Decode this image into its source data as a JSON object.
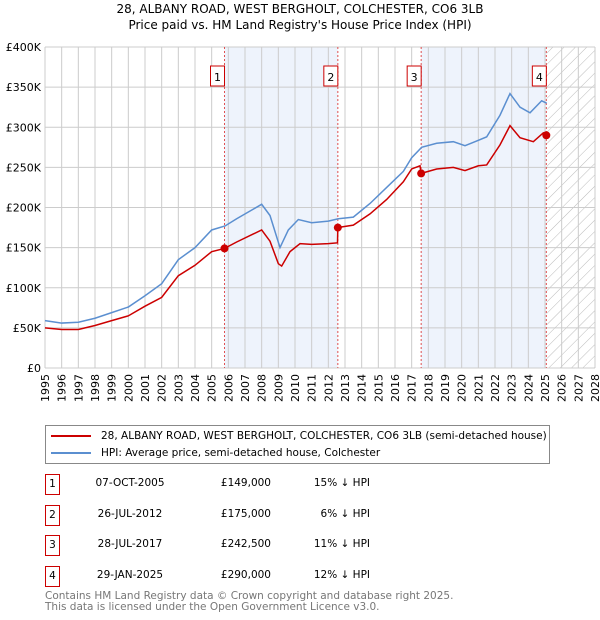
{
  "chart_data": {
    "type": "line",
    "title": "28, ALBANY ROAD, WEST BERGHOLT, COLCHESTER, CO6 3LB",
    "subtitle": "Price paid vs. HM Land Registry's House Price Index (HPI)",
    "xlim": [
      1995,
      2028
    ],
    "ylim": [
      0,
      400000
    ],
    "x_ticks": [
      "1995",
      "1996",
      "1997",
      "1998",
      "1999",
      "2000",
      "2001",
      "2002",
      "2003",
      "2004",
      "2005",
      "2006",
      "2007",
      "2008",
      "2009",
      "2010",
      "2011",
      "2012",
      "2013",
      "2014",
      "2015",
      "2016",
      "2017",
      "2018",
      "2019",
      "2020",
      "2021",
      "2022",
      "2023",
      "2024",
      "2025",
      "2026",
      "2027",
      "2028"
    ],
    "y_ticks": [
      {
        "v": 0,
        "label": "£0"
      },
      {
        "v": 50000,
        "label": "£50K"
      },
      {
        "v": 100000,
        "label": "£100K"
      },
      {
        "v": 150000,
        "label": "£150K"
      },
      {
        "v": 200000,
        "label": "£200K"
      },
      {
        "v": 250000,
        "label": "£250K"
      },
      {
        "v": 300000,
        "label": "£300K"
      },
      {
        "v": 350000,
        "label": "£350K"
      },
      {
        "v": 400000,
        "label": "£400K"
      }
    ],
    "grid": true,
    "forecast_hatch_from": 2025.1,
    "series": [
      {
        "name": "28, ALBANY ROAD, WEST BERGHOLT, COLCHESTER, CO6 3LB (semi-detached house)",
        "color": "#cc0000",
        "x": [
          1995,
          1996,
          1997,
          1998,
          1999,
          2000,
          2001,
          2002,
          2003,
          2004,
          2005,
          2005.77,
          2006.5,
          2007.5,
          2008,
          2008.5,
          2009,
          2009.2,
          2009.7,
          2010.3,
          2011,
          2012,
          2012.55,
          2012.57,
          2013.5,
          2014.5,
          2015.5,
          2016.5,
          2017,
          2017.5,
          2017.57,
          2018.5,
          2019.5,
          2020.2,
          2021,
          2021.5,
          2022.3,
          2022.9,
          2023.5,
          2024.3,
          2024.9,
          2025.1
        ],
        "y": [
          50000,
          48000,
          48000,
          53000,
          59000,
          65000,
          77000,
          88000,
          115000,
          128000,
          145000,
          149000,
          157000,
          167000,
          172000,
          158000,
          130000,
          127000,
          145000,
          155000,
          154000,
          155000,
          156000,
          175000,
          178000,
          192000,
          210000,
          232000,
          248000,
          252000,
          242500,
          248000,
          250000,
          246000,
          252000,
          253000,
          278000,
          302000,
          287000,
          282000,
          293000,
          290000
        ]
      },
      {
        "name": "HPI: Average price, semi-detached house, Colchester",
        "color": "#5b8fd0",
        "x": [
          1995,
          1996,
          1997,
          1998,
          1999,
          2000,
          2001,
          2002,
          2003,
          2004,
          2005,
          2005.8,
          2006.5,
          2007.5,
          2008,
          2008.5,
          2009.1,
          2009.6,
          2010.2,
          2011,
          2012,
          2012.6,
          2013.5,
          2014.5,
          2015.5,
          2016.5,
          2017,
          2017.6,
          2018.5,
          2019.5,
          2020.2,
          2020.8,
          2021.5,
          2022.3,
          2022.9,
          2023.5,
          2024.1,
          2024.8,
          2025.1
        ],
        "y": [
          59000,
          56000,
          57000,
          62000,
          69000,
          76000,
          90000,
          105000,
          135000,
          150000,
          172000,
          177000,
          186000,
          198000,
          204000,
          190000,
          150000,
          172000,
          185000,
          181000,
          183000,
          186000,
          188000,
          205000,
          225000,
          245000,
          262000,
          275000,
          280000,
          282000,
          277000,
          282000,
          288000,
          315000,
          342000,
          325000,
          318000,
          333000,
          330000
        ]
      }
    ],
    "sales": [
      {
        "label": "1",
        "x": 2005.77,
        "y": 149000,
        "date": "07-OCT-2005",
        "price": "£149,000",
        "hpi": "15% ↓ HPI"
      },
      {
        "label": "2",
        "x": 2012.57,
        "y": 175000,
        "date": "26-JUL-2012",
        "price": "£175,000",
        "hpi": "6% ↓ HPI"
      },
      {
        "label": "3",
        "x": 2017.57,
        "y": 242500,
        "date": "28-JUL-2017",
        "price": "£242,500",
        "hpi": "11% ↓ HPI"
      },
      {
        "label": "4",
        "x": 2025.08,
        "y": 290000,
        "date": "29-JAN-2025",
        "price": "£290,000",
        "hpi": "12% ↓ HPI"
      }
    ],
    "shaded_ranges": [
      [
        2005.77,
        2012.57
      ],
      [
        2017.57,
        2025.08
      ]
    ]
  },
  "legend": {
    "property": "28, ALBANY ROAD, WEST BERGHOLT, COLCHESTER, CO6 3LB (semi-detached house)",
    "hpi": "HPI: Average price, semi-detached house, Colchester"
  },
  "footer": {
    "line1": "Contains HM Land Registry data © Crown copyright and database right 2025.",
    "line2": "This data is licensed under the Open Government Licence v3.0."
  }
}
